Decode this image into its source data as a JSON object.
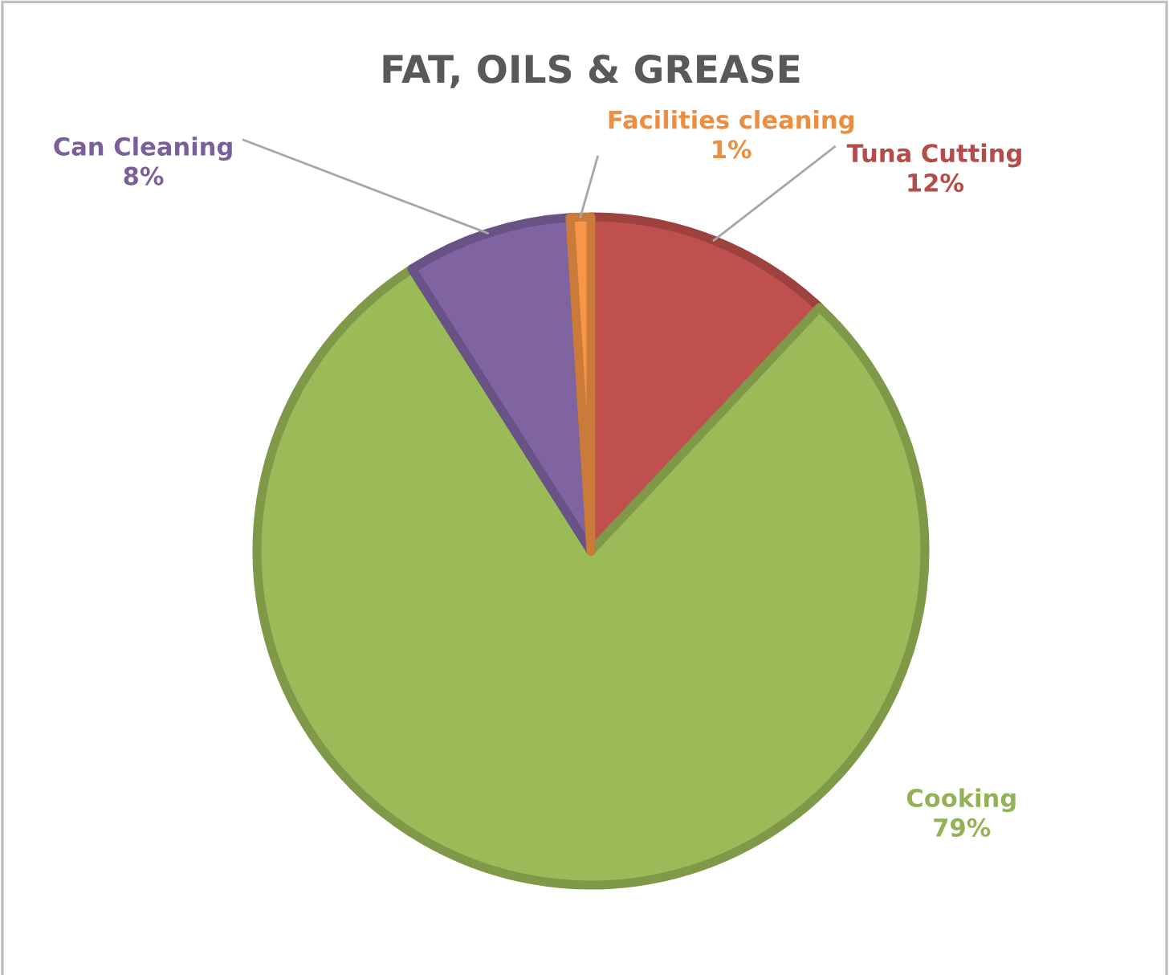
{
  "chart_data": {
    "type": "pie",
    "title": "FAT, OILS & GREASE",
    "categories": [
      "Tuna Cutting",
      "Cooking",
      "Can Cleaning",
      "Facilities cleaning"
    ],
    "values": [
      12,
      79,
      8,
      1
    ],
    "value_labels": [
      "12%",
      "79%",
      "8%",
      "1%"
    ],
    "colors": [
      "#c0504d",
      "#9bbb59",
      "#8064a2",
      "#f79646"
    ]
  }
}
